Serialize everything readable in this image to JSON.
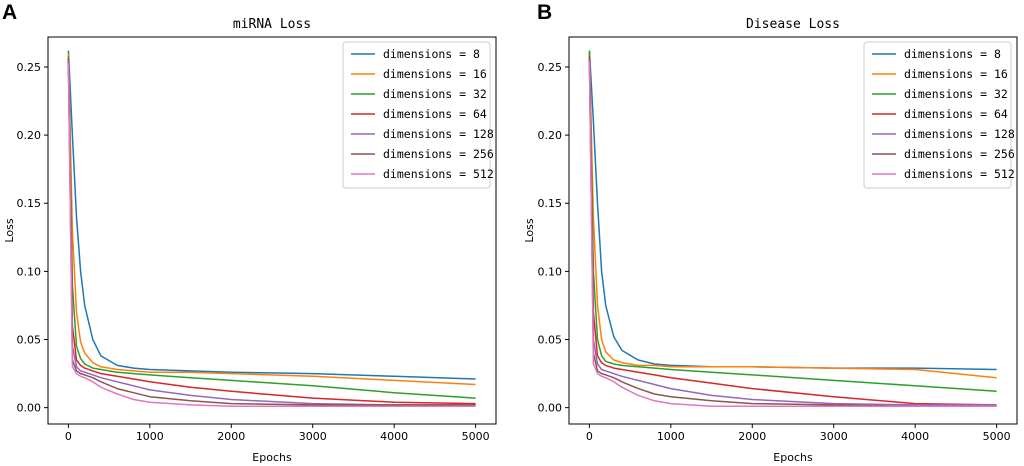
{
  "panels": [
    {
      "letter": "A",
      "chart_index": 0
    },
    {
      "letter": "B",
      "chart_index": 1
    }
  ],
  "chart_data": [
    {
      "type": "line",
      "title": "miRNA Loss",
      "xlabel": "Epochs",
      "ylabel": "Loss",
      "xlim": [
        -250,
        5250
      ],
      "ylim": [
        -0.012,
        0.272
      ],
      "xticks": [
        0,
        1000,
        2000,
        3000,
        4000,
        5000
      ],
      "yticks": [
        0.0,
        0.05,
        0.1,
        0.15,
        0.2,
        0.25
      ],
      "ytick_labels": [
        "0.00",
        "0.05",
        "0.10",
        "0.15",
        "0.20",
        "0.25"
      ],
      "legend_position": "upper-right",
      "series": [
        {
          "name": "dimensions = 8",
          "color": "#1f77b4",
          "x": [
            0,
            50,
            100,
            150,
            200,
            300,
            400,
            600,
            800,
            1000,
            1500,
            2000,
            3000,
            4000,
            5000
          ],
          "values": [
            0.262,
            0.2,
            0.14,
            0.1,
            0.075,
            0.05,
            0.038,
            0.031,
            0.029,
            0.028,
            0.027,
            0.026,
            0.025,
            0.023,
            0.021
          ]
        },
        {
          "name": "dimensions = 16",
          "color": "#ff7f0e",
          "x": [
            0,
            50,
            100,
            150,
            200,
            300,
            400,
            600,
            800,
            1000,
            1500,
            2000,
            3000,
            4000,
            5000
          ],
          "values": [
            0.26,
            0.13,
            0.07,
            0.048,
            0.04,
            0.033,
            0.03,
            0.028,
            0.027,
            0.026,
            0.026,
            0.025,
            0.023,
            0.02,
            0.017
          ]
        },
        {
          "name": "dimensions = 32",
          "color": "#2ca02c",
          "x": [
            0,
            50,
            100,
            150,
            200,
            300,
            400,
            600,
            800,
            1000,
            1500,
            2000,
            3000,
            4000,
            5000
          ],
          "values": [
            0.258,
            0.09,
            0.045,
            0.036,
            0.032,
            0.029,
            0.028,
            0.026,
            0.025,
            0.024,
            0.022,
            0.02,
            0.016,
            0.011,
            0.007
          ]
        },
        {
          "name": "dimensions = 64",
          "color": "#d62728",
          "x": [
            0,
            50,
            100,
            150,
            200,
            300,
            400,
            600,
            800,
            1000,
            1500,
            2000,
            3000,
            4000,
            5000
          ],
          "values": [
            0.256,
            0.06,
            0.035,
            0.031,
            0.029,
            0.027,
            0.025,
            0.023,
            0.021,
            0.019,
            0.015,
            0.012,
            0.007,
            0.004,
            0.003
          ]
        },
        {
          "name": "dimensions = 128",
          "color": "#9467bd",
          "x": [
            0,
            50,
            100,
            150,
            200,
            300,
            400,
            600,
            800,
            1000,
            1500,
            2000,
            3000,
            4000,
            5000
          ],
          "values": [
            0.255,
            0.045,
            0.03,
            0.027,
            0.026,
            0.024,
            0.022,
            0.019,
            0.016,
            0.013,
            0.009,
            0.006,
            0.003,
            0.002,
            0.002
          ]
        },
        {
          "name": "dimensions = 256",
          "color": "#8c564b",
          "x": [
            0,
            50,
            100,
            150,
            200,
            300,
            400,
            600,
            800,
            1000,
            1500,
            2000,
            3000,
            4000,
            5000
          ],
          "values": [
            0.254,
            0.035,
            0.027,
            0.025,
            0.024,
            0.022,
            0.019,
            0.014,
            0.011,
            0.008,
            0.005,
            0.003,
            0.002,
            0.002,
            0.002
          ]
        },
        {
          "name": "dimensions = 512",
          "color": "#e377c2",
          "x": [
            0,
            50,
            100,
            150,
            200,
            300,
            400,
            600,
            800,
            1000,
            1500,
            2000,
            3000,
            4000,
            5000
          ],
          "values": [
            0.253,
            0.03,
            0.025,
            0.023,
            0.022,
            0.019,
            0.015,
            0.01,
            0.006,
            0.004,
            0.002,
            0.001,
            0.001,
            0.001,
            0.001
          ]
        }
      ]
    },
    {
      "type": "line",
      "title": "Disease Loss",
      "xlabel": "Epochs",
      "ylabel": "Loss",
      "xlim": [
        -250,
        5250
      ],
      "ylim": [
        -0.012,
        0.272
      ],
      "xticks": [
        0,
        1000,
        2000,
        3000,
        4000,
        5000
      ],
      "yticks": [
        0.0,
        0.05,
        0.1,
        0.15,
        0.2,
        0.25
      ],
      "ytick_labels": [
        "0.00",
        "0.05",
        "0.10",
        "0.15",
        "0.20",
        "0.25"
      ],
      "legend_position": "upper-right",
      "series": [
        {
          "name": "dimensions = 8",
          "color": "#1f77b4",
          "x": [
            0,
            50,
            100,
            150,
            200,
            300,
            400,
            600,
            800,
            1000,
            1500,
            2000,
            3000,
            4000,
            5000
          ],
          "values": [
            0.262,
            0.21,
            0.15,
            0.1,
            0.075,
            0.052,
            0.042,
            0.035,
            0.032,
            0.031,
            0.03,
            0.03,
            0.029,
            0.029,
            0.028
          ]
        },
        {
          "name": "dimensions = 16",
          "color": "#ff7f0e",
          "x": [
            0,
            50,
            100,
            150,
            200,
            300,
            400,
            600,
            800,
            1000,
            1500,
            2000,
            3000,
            4000,
            5000
          ],
          "values": [
            0.26,
            0.14,
            0.075,
            0.05,
            0.041,
            0.035,
            0.033,
            0.031,
            0.031,
            0.03,
            0.03,
            0.03,
            0.029,
            0.028,
            0.022
          ]
        },
        {
          "name": "dimensions = 32",
          "color": "#2ca02c",
          "x": [
            0,
            50,
            100,
            150,
            200,
            300,
            400,
            600,
            800,
            1000,
            1500,
            2000,
            3000,
            4000,
            5000
          ],
          "values": [
            0.262,
            0.1,
            0.05,
            0.038,
            0.034,
            0.032,
            0.031,
            0.03,
            0.029,
            0.028,
            0.026,
            0.024,
            0.02,
            0.016,
            0.012
          ]
        },
        {
          "name": "dimensions = 64",
          "color": "#d62728",
          "x": [
            0,
            50,
            100,
            150,
            200,
            300,
            400,
            600,
            800,
            1000,
            1500,
            2000,
            3000,
            4000,
            5000
          ],
          "values": [
            0.258,
            0.07,
            0.038,
            0.033,
            0.031,
            0.029,
            0.028,
            0.026,
            0.024,
            0.022,
            0.018,
            0.014,
            0.008,
            0.003,
            0.002
          ]
        },
        {
          "name": "dimensions = 128",
          "color": "#9467bd",
          "x": [
            0,
            50,
            100,
            150,
            200,
            300,
            400,
            600,
            800,
            1000,
            1500,
            2000,
            3000,
            4000,
            5000
          ],
          "values": [
            0.256,
            0.05,
            0.032,
            0.028,
            0.027,
            0.025,
            0.023,
            0.02,
            0.017,
            0.014,
            0.009,
            0.006,
            0.003,
            0.002,
            0.002
          ]
        },
        {
          "name": "dimensions = 256",
          "color": "#8c564b",
          "x": [
            0,
            50,
            100,
            150,
            200,
            300,
            400,
            600,
            800,
            1000,
            1500,
            2000,
            3000,
            4000,
            5000
          ],
          "values": [
            0.255,
            0.04,
            0.027,
            0.025,
            0.024,
            0.022,
            0.019,
            0.014,
            0.01,
            0.008,
            0.005,
            0.003,
            0.002,
            0.001,
            0.001
          ]
        },
        {
          "name": "dimensions = 512",
          "color": "#e377c2",
          "x": [
            0,
            50,
            100,
            150,
            200,
            300,
            400,
            600,
            800,
            1000,
            1500,
            2000,
            3000,
            4000,
            5000
          ],
          "values": [
            0.254,
            0.032,
            0.025,
            0.023,
            0.022,
            0.019,
            0.015,
            0.009,
            0.005,
            0.003,
            0.001,
            0.001,
            0.001,
            0.001,
            0.001
          ]
        }
      ]
    }
  ]
}
